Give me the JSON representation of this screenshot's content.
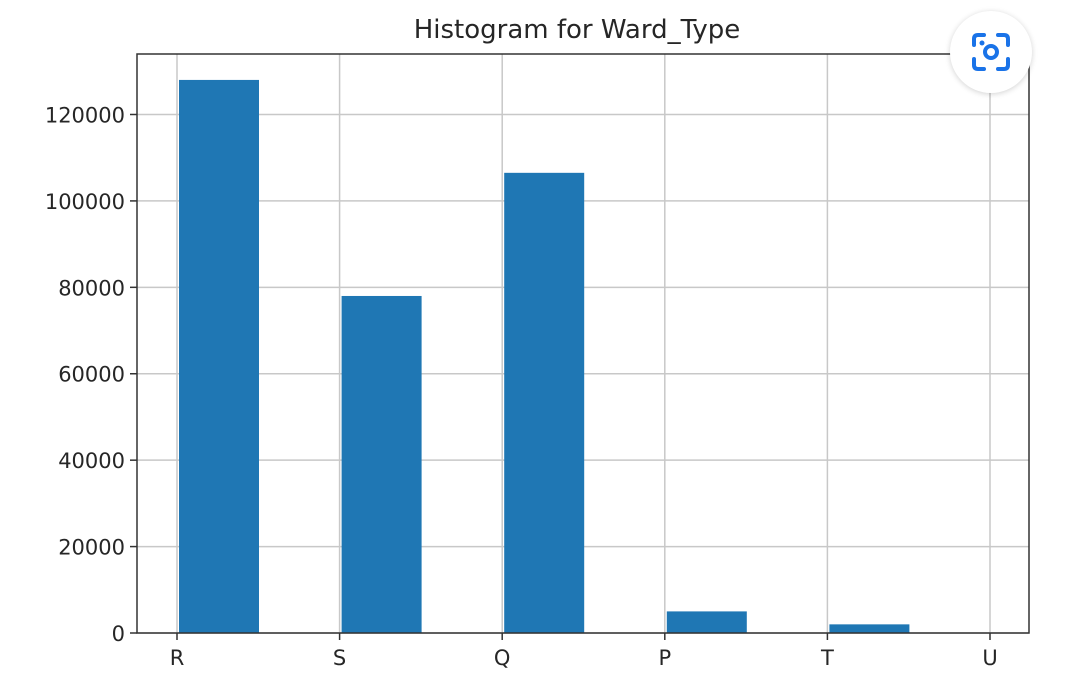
{
  "chart_data": {
    "type": "bar",
    "title": "Histogram for Ward_Type",
    "categories": [
      "R",
      "S",
      "Q",
      "P",
      "T",
      "U"
    ],
    "values": [
      128000,
      78000,
      106500,
      5000,
      2000,
      0
    ],
    "ylim": [
      0,
      134000
    ],
    "yticks": [
      0,
      20000,
      40000,
      60000,
      80000,
      100000,
      120000
    ],
    "ytick_labels": [
      "0",
      "20000",
      "40000",
      "60000",
      "80000",
      "100000",
      "120000"
    ],
    "grid": true,
    "bar_color": "#1f77b4",
    "grid_color": "#c8c8c8"
  },
  "lens_button": {
    "icon": "lens-scan-icon",
    "color": "#1a73e8"
  }
}
